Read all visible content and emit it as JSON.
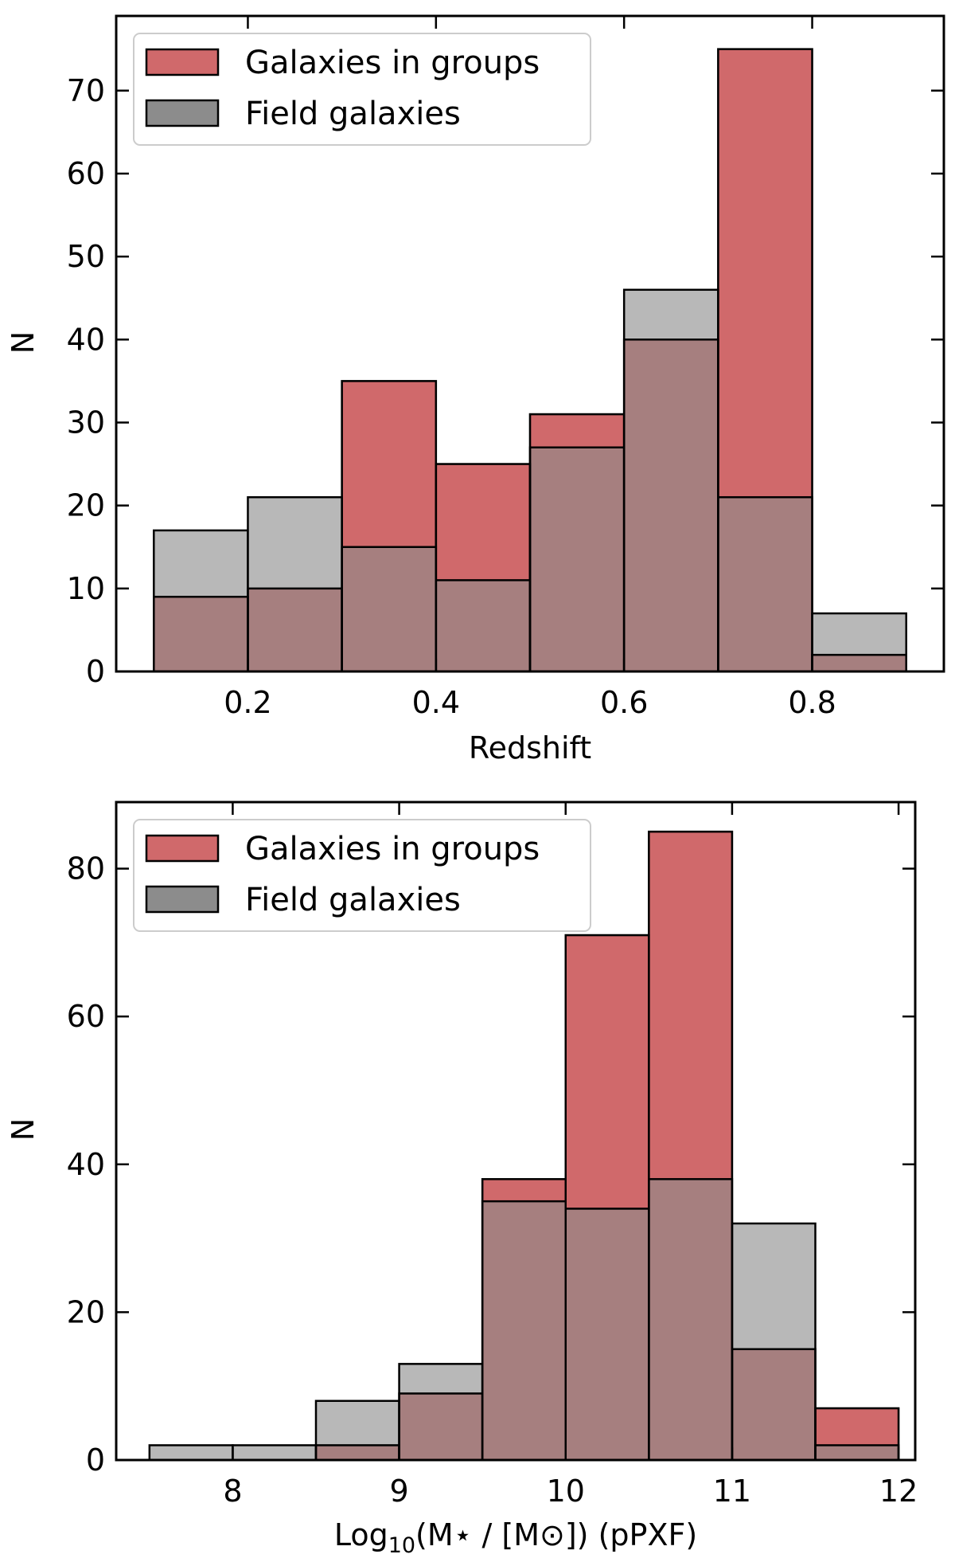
{
  "chart_data": [
    {
      "type": "bar",
      "histogram": true,
      "xlabel": "Redshift",
      "ylabel": "N",
      "xlim": [
        0.06,
        0.94
      ],
      "ylim": [
        0,
        79
      ],
      "xticks": [
        0.2,
        0.4,
        0.6,
        0.8
      ],
      "xtick_labels": [
        "0.2",
        "0.4",
        "0.6",
        "0.8"
      ],
      "yticks": [
        0,
        10,
        20,
        30,
        40,
        50,
        60,
        70
      ],
      "ytick_labels": [
        "0",
        "10",
        "20",
        "30",
        "40",
        "50",
        "60",
        "70"
      ],
      "bin_edges": [
        0.1,
        0.2,
        0.3,
        0.4,
        0.5,
        0.6,
        0.7,
        0.8,
        0.9
      ],
      "legend_position": "top-left",
      "series": [
        {
          "name": "Galaxies in groups",
          "color": "#d0696b",
          "values": [
            9,
            10,
            35,
            25,
            31,
            40,
            75,
            2
          ]
        },
        {
          "name": "Field galaxies",
          "color": "#8c8c8c",
          "values": [
            17,
            21,
            15,
            11,
            27,
            46,
            21,
            7
          ]
        }
      ]
    },
    {
      "type": "bar",
      "histogram": true,
      "xlabel": "Log10(M⋆ / [M⊙]) (pPXF)",
      "xlabel_parts": {
        "main": "Log",
        "sub": "10",
        "rest": "(M⋆ / [M⊙]) (pPXF)"
      },
      "ylabel": "N",
      "xlim": [
        7.3,
        12.1
      ],
      "ylim": [
        0,
        89
      ],
      "xticks": [
        8,
        9,
        10,
        11,
        12
      ],
      "xtick_labels": [
        "8",
        "9",
        "10",
        "11",
        "12"
      ],
      "yticks": [
        0,
        20,
        40,
        60,
        80
      ],
      "ytick_labels": [
        "0",
        "20",
        "40",
        "60",
        "80"
      ],
      "bin_edges": [
        7.5,
        8.0,
        8.5,
        9.0,
        9.5,
        10.0,
        10.5,
        11.0,
        11.5,
        12.0
      ],
      "legend_position": "top-left",
      "series": [
        {
          "name": "Galaxies in groups",
          "color": "#d0696b",
          "values": [
            0,
            0,
            2,
            9,
            38,
            71,
            85,
            15,
            7
          ]
        },
        {
          "name": "Field galaxies",
          "color": "#8c8c8c",
          "values": [
            2,
            2,
            8,
            13,
            35,
            34,
            38,
            32,
            2
          ]
        }
      ]
    }
  ]
}
